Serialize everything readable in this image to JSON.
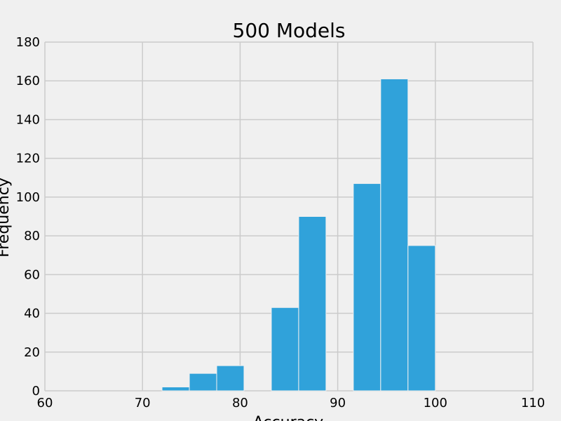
{
  "chart_data": {
    "type": "bar",
    "title": "500 Models",
    "xlabel": "Accuracy",
    "ylabel": "Frequency",
    "xlim": [
      60,
      110
    ],
    "ylim": [
      0,
      180
    ],
    "xticks": [
      60,
      70,
      80,
      90,
      100,
      110
    ],
    "yticks": [
      0,
      20,
      40,
      60,
      80,
      100,
      120,
      140,
      160,
      180
    ],
    "grid": true,
    "bar_color": "#30a2da",
    "grid_color": "#cbcbcb",
    "background": "#f0f0f0",
    "bins": [
      {
        "x0": 72.0,
        "x1": 74.8,
        "value": 2
      },
      {
        "x0": 74.8,
        "x1": 77.6,
        "value": 9
      },
      {
        "x0": 77.6,
        "x1": 80.4,
        "value": 13
      },
      {
        "x0": 80.4,
        "x1": 83.2,
        "value": 0
      },
      {
        "x0": 83.2,
        "x1": 86.0,
        "value": 43
      },
      {
        "x0": 86.0,
        "x1": 88.8,
        "value": 90
      },
      {
        "x0": 88.8,
        "x1": 91.6,
        "value": 0
      },
      {
        "x0": 91.6,
        "x1": 94.4,
        "value": 107
      },
      {
        "x0": 94.4,
        "x1": 97.2,
        "value": 161
      },
      {
        "x0": 97.2,
        "x1": 100.0,
        "value": 75
      }
    ]
  }
}
